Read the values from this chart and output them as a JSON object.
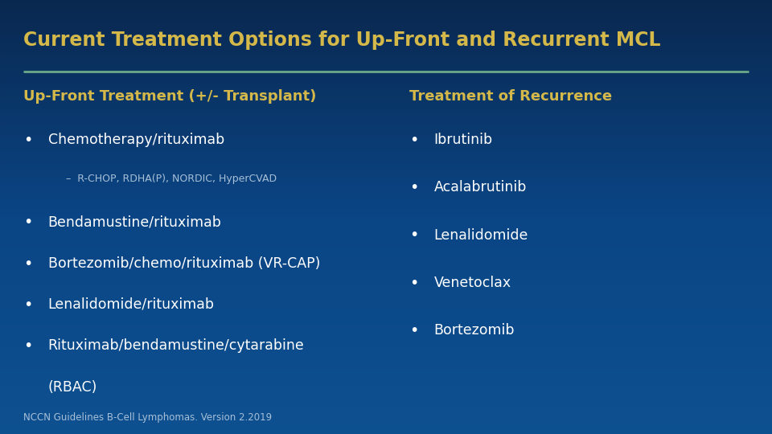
{
  "title": "Current Treatment Options for Up-Front and Recurrent MCL",
  "bg_color": "#0a4080",
  "bg_color_top": "#0a3060",
  "title_color": "#D4B84A",
  "header_color": "#D4B84A",
  "text_color": "#FFFFFF",
  "subtext_color": "#A8C0D8",
  "footer_color": "#A8C0D8",
  "divider_color": "#6BAA88",
  "left_header": "Up-Front Treatment (+/- Transplant)",
  "right_header": "Treatment of Recurrence",
  "left_items": [
    {
      "text": "Chemotherapy/rituximab",
      "level": 0
    },
    {
      "text": "–  R-CHOP, RDHA(P), NORDIC, HyperCVAD",
      "level": 1
    },
    {
      "text": "Bendamustine/rituximab",
      "level": 0
    },
    {
      "text": "Bortezomib/chemo/rituximab (VR-CAP)",
      "level": 0
    },
    {
      "text": "Lenalidomide/rituximab",
      "level": 0
    },
    {
      "text": "Rituximab/bendamustine/cytarabine",
      "level": 0
    },
    {
      "text": "(RBAC)",
      "level": 2
    }
  ],
  "right_items": [
    {
      "text": "Ibrutinib",
      "level": 0
    },
    {
      "text": "Acalabrutinib",
      "level": 0
    },
    {
      "text": "Lenalidomide",
      "level": 0
    },
    {
      "text": "Venetoclax",
      "level": 0
    },
    {
      "text": "Bortezomib",
      "level": 0
    }
  ],
  "footer": "NCCN Guidelines B-Cell Lymphomas. Version 2.2019"
}
